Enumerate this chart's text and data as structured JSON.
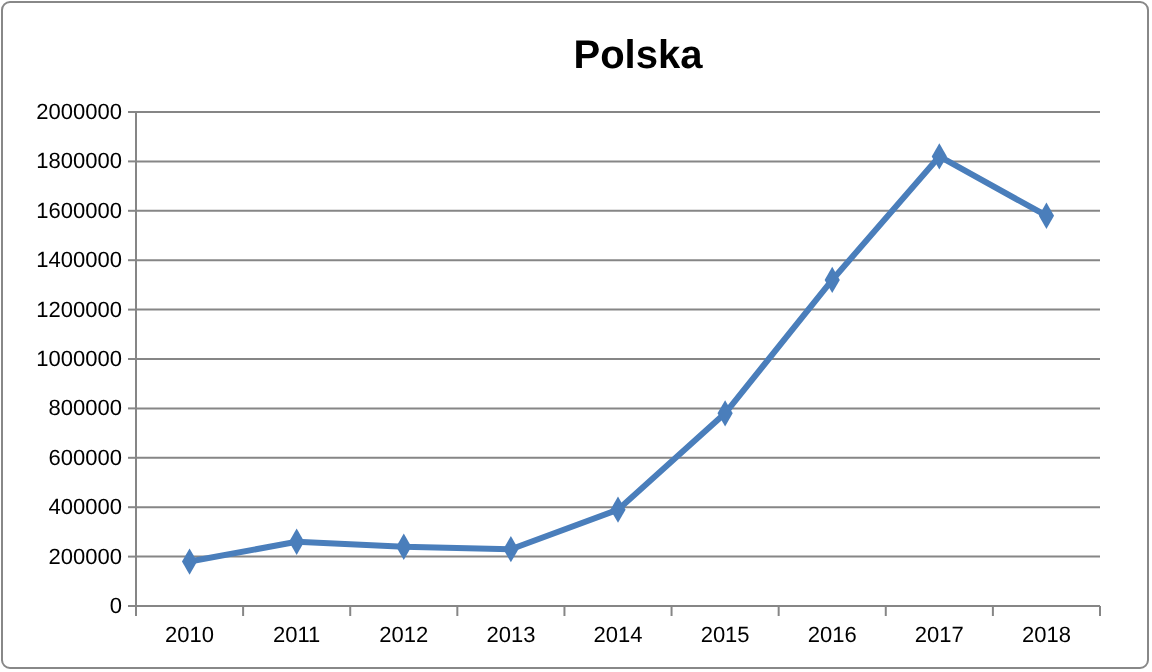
{
  "chart_data": {
    "type": "line",
    "title": "Polska",
    "categories": [
      "2010",
      "2011",
      "2012",
      "2013",
      "2014",
      "2015",
      "2016",
      "2017",
      "2018"
    ],
    "series": [
      {
        "color": "#4a7ebb",
        "values": [
          180000,
          260000,
          240000,
          230000,
          390000,
          780000,
          1320000,
          1820000,
          1580000
        ]
      }
    ],
    "ylim": [
      0,
      2000000
    ],
    "yticks": [
      0,
      200000,
      400000,
      600000,
      800000,
      1000000,
      1200000,
      1400000,
      1600000,
      1800000,
      2000000
    ],
    "grid": "y",
    "marker": "diamond"
  }
}
